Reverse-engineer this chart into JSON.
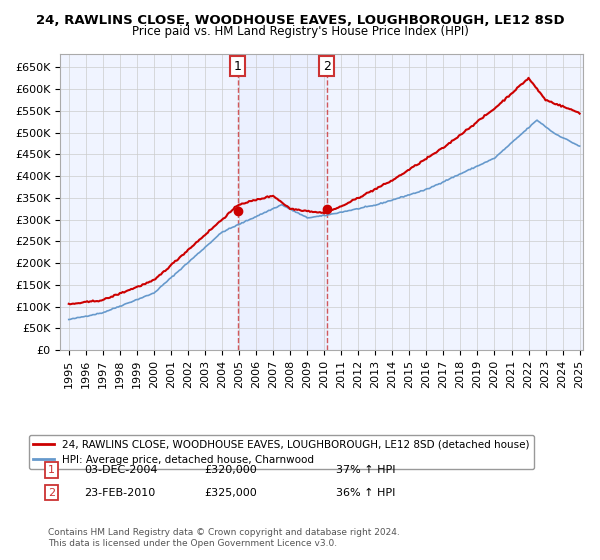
{
  "title1": "24, RAWLINS CLOSE, WOODHOUSE EAVES, LOUGHBOROUGH, LE12 8SD",
  "title2": "Price paid vs. HM Land Registry's House Price Index (HPI)",
  "legend_line1": "24, RAWLINS CLOSE, WOODHOUSE EAVES, LOUGHBOROUGH, LE12 8SD (detached house)",
  "legend_line2": "HPI: Average price, detached house, Charnwood",
  "annotation1_label": "1",
  "annotation1_date": "03-DEC-2004",
  "annotation1_price": "£320,000",
  "annotation1_hpi": "37% ↑ HPI",
  "annotation2_label": "2",
  "annotation2_date": "23-FEB-2010",
  "annotation2_price": "£325,000",
  "annotation2_hpi": "36% ↑ HPI",
  "footnote1": "Contains HM Land Registry data © Crown copyright and database right 2024.",
  "footnote2": "This data is licensed under the Open Government Licence v3.0.",
  "red_color": "#cc0000",
  "blue_color": "#6699cc",
  "bg_color": "#ffffff",
  "plot_bg_color": "#f0f4ff",
  "grid_color": "#cccccc",
  "annotation_box_color": "#cc3333",
  "shade_color": "#dde8ff",
  "ylim_min": 0,
  "ylim_max": 680000,
  "yticks": [
    0,
    50000,
    100000,
    150000,
    200000,
    250000,
    300000,
    350000,
    400000,
    450000,
    500000,
    550000,
    600000,
    650000
  ],
  "xstart_year": 1995,
  "xend_year": 2025,
  "sale1_year": 2004.92,
  "sale1_value": 320000,
  "sale2_year": 2010.15,
  "sale2_value": 325000
}
